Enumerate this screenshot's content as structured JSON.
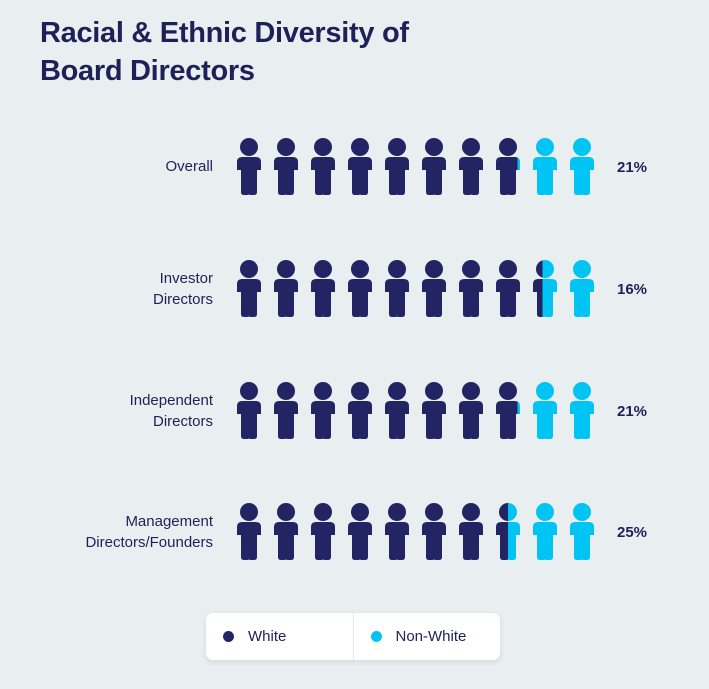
{
  "colors": {
    "white": "#232463",
    "non_white": "#00C5F4",
    "text": "#1E2157",
    "background": "#E9EEF1"
  },
  "icons": {
    "person": "person-icon",
    "legend_dot": "circle-icon"
  },
  "chart_data": {
    "type": "pictogram",
    "title": "Racial & Ethnic Diversity of Board Directors",
    "title_lines": [
      "Racial & Ethnic Diversity of",
      "Board Directors"
    ],
    "icons_per_row": 10,
    "unit": "%",
    "categories": [
      [
        "Overall"
      ],
      [
        "Investor",
        "Directors"
      ],
      [
        "Independent",
        "Directors"
      ],
      [
        "Management",
        "Directors/Founders"
      ]
    ],
    "series": [
      {
        "name": "Non-White",
        "color": "#00C5F4",
        "values": [
          21,
          16,
          21,
          25
        ],
        "labels": [
          "21%",
          "16%",
          "21%",
          "25%"
        ]
      },
      {
        "name": "White",
        "color": "#232463",
        "values": [
          79,
          84,
          79,
          75
        ]
      }
    ],
    "legend": {
      "position": "bottom",
      "entries": [
        {
          "label": "White",
          "color": "#232463"
        },
        {
          "label": "Non-White",
          "color": "#00C5F4"
        }
      ]
    }
  }
}
